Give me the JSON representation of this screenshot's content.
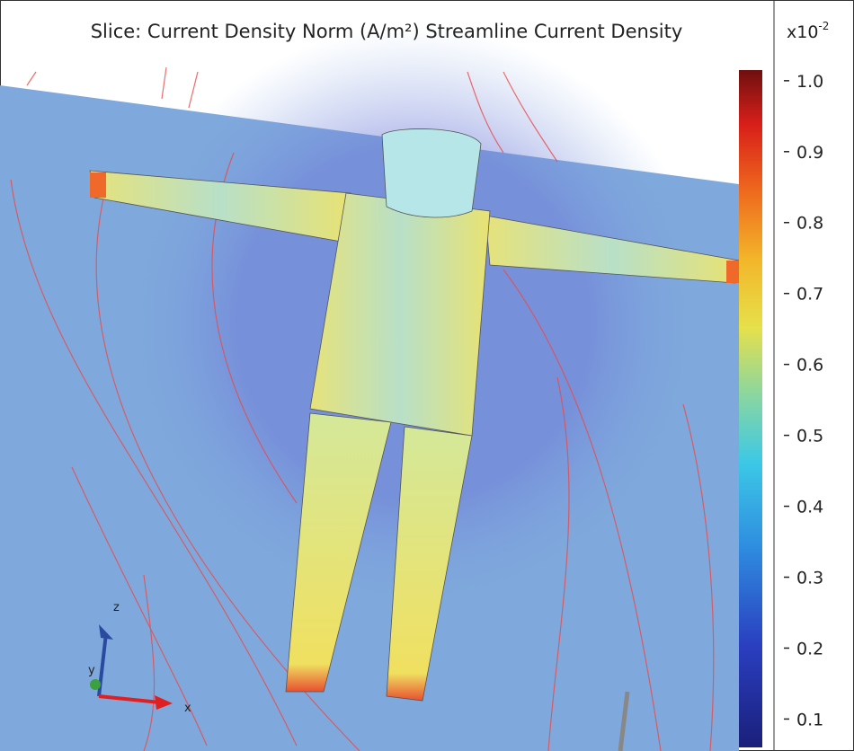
{
  "header": {
    "title": "Slice: Current Density Norm (A/m²) Streamline Current Density"
  },
  "colorbar": {
    "exponent": {
      "base": "x10",
      "power": "-2"
    },
    "range": [
      0.06,
      1.015
    ],
    "ticks": [
      {
        "value": 1.0,
        "label": "1.0"
      },
      {
        "value": 0.9,
        "label": "0.9"
      },
      {
        "value": 0.8,
        "label": "0.8"
      },
      {
        "value": 0.7,
        "label": "0.7"
      },
      {
        "value": 0.6,
        "label": "0.6"
      },
      {
        "value": 0.5,
        "label": "0.5"
      },
      {
        "value": 0.4,
        "label": "0.4"
      },
      {
        "value": 0.3,
        "label": "0.3"
      },
      {
        "value": 0.2,
        "label": "0.2"
      },
      {
        "value": 0.1,
        "label": "0.1"
      }
    ]
  },
  "axes_triad": {
    "z": "z",
    "y": "y",
    "x": "x"
  }
}
